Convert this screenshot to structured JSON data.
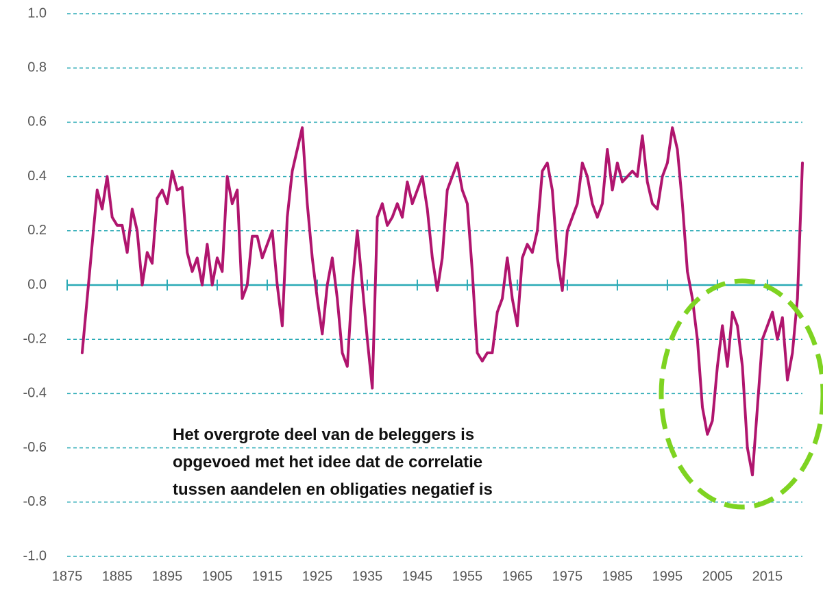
{
  "chart_data": {
    "type": "line",
    "annotation": [
      "Het overgrote deel van de beleggers is",
      "opgevoed met het idee dat de correlatie",
      "tussen aandelen en obligaties negatief is"
    ],
    "x": [
      1878,
      1879,
      1880,
      1881,
      1882,
      1883,
      1884,
      1885,
      1886,
      1887,
      1888,
      1889,
      1890,
      1891,
      1892,
      1893,
      1894,
      1895,
      1896,
      1897,
      1898,
      1899,
      1900,
      1901,
      1902,
      1903,
      1904,
      1905,
      1906,
      1907,
      1908,
      1909,
      1910,
      1911,
      1912,
      1913,
      1914,
      1915,
      1916,
      1917,
      1918,
      1919,
      1920,
      1921,
      1922,
      1923,
      1924,
      1925,
      1926,
      1927,
      1928,
      1929,
      1930,
      1931,
      1932,
      1933,
      1934,
      1935,
      1936,
      1937,
      1938,
      1939,
      1940,
      1941,
      1942,
      1943,
      1944,
      1945,
      1946,
      1947,
      1948,
      1949,
      1950,
      1951,
      1952,
      1953,
      1954,
      1955,
      1956,
      1957,
      1958,
      1959,
      1960,
      1961,
      1962,
      1963,
      1964,
      1965,
      1966,
      1967,
      1968,
      1969,
      1970,
      1971,
      1972,
      1973,
      1974,
      1975,
      1976,
      1977,
      1978,
      1979,
      1980,
      1981,
      1982,
      1983,
      1984,
      1985,
      1986,
      1987,
      1988,
      1989,
      1990,
      1991,
      1992,
      1993,
      1994,
      1995,
      1996,
      1997,
      1998,
      1999,
      2000,
      2001,
      2002,
      2003,
      2004,
      2005,
      2006,
      2007,
      2008,
      2009,
      2010,
      2011,
      2012,
      2013,
      2014,
      2015,
      2016,
      2017,
      2018,
      2019,
      2020,
      2021,
      2022
    ],
    "series": [
      {
        "color": "#b0156e",
        "values": [
          -0.25,
          -0.05,
          0.15,
          0.35,
          0.28,
          0.4,
          0.25,
          0.22,
          0.22,
          0.12,
          0.28,
          0.2,
          0.0,
          0.12,
          0.08,
          0.32,
          0.35,
          0.3,
          0.42,
          0.35,
          0.36,
          0.12,
          0.05,
          0.1,
          0.0,
          0.15,
          0.0,
          0.1,
          0.05,
          0.4,
          0.3,
          0.35,
          -0.05,
          0.0,
          0.18,
          0.18,
          0.1,
          0.15,
          0.2,
          0.0,
          -0.15,
          0.25,
          0.42,
          0.5,
          0.58,
          0.3,
          0.1,
          -0.05,
          -0.18,
          0.0,
          0.1,
          -0.05,
          -0.25,
          -0.3,
          0.0,
          0.2,
          0.0,
          -0.2,
          -0.38,
          0.25,
          0.3,
          0.22,
          0.25,
          0.3,
          0.25,
          0.38,
          0.3,
          0.35,
          0.4,
          0.28,
          0.1,
          -0.02,
          0.1,
          0.35,
          0.4,
          0.45,
          0.35,
          0.3,
          0.05,
          -0.25,
          -0.28,
          -0.25,
          -0.25,
          -0.1,
          -0.05,
          0.1,
          -0.05,
          -0.15,
          0.1,
          0.15,
          0.12,
          0.2,
          0.42,
          0.45,
          0.35,
          0.1,
          -0.02,
          0.2,
          0.25,
          0.3,
          0.45,
          0.4,
          0.3,
          0.25,
          0.3,
          0.5,
          0.35,
          0.45,
          0.38,
          0.4,
          0.42,
          0.4,
          0.55,
          0.38,
          0.3,
          0.28,
          0.4,
          0.45,
          0.58,
          0.5,
          0.3,
          0.05,
          -0.05,
          -0.2,
          -0.45,
          -0.55,
          -0.5,
          -0.3,
          -0.15,
          -0.3,
          -0.1,
          -0.15,
          -0.3,
          -0.6,
          -0.7,
          -0.45,
          -0.2,
          -0.15,
          -0.1,
          -0.2,
          -0.12,
          -0.35,
          -0.25,
          -0.05,
          0.45
        ]
      }
    ],
    "xlim": [
      1875,
      2022
    ],
    "xticks": [
      1875,
      1885,
      1895,
      1905,
      1915,
      1925,
      1935,
      1945,
      1955,
      1965,
      1975,
      1985,
      1995,
      2005,
      2015
    ],
    "ylim": [
      -1,
      1
    ],
    "yticks": [
      {
        "value": 1,
        "label": "1.0"
      },
      0.8,
      0.6,
      0.4,
      0.2,
      {
        "value": 0,
        "label": "0.0"
      },
      -0.2,
      -0.4,
      -0.6,
      -0.8,
      {
        "value": -1,
        "label": "-1.0"
      }
    ],
    "grid": true,
    "grid_color": "#2aaab5",
    "highlight_color": "#7ed321"
  }
}
